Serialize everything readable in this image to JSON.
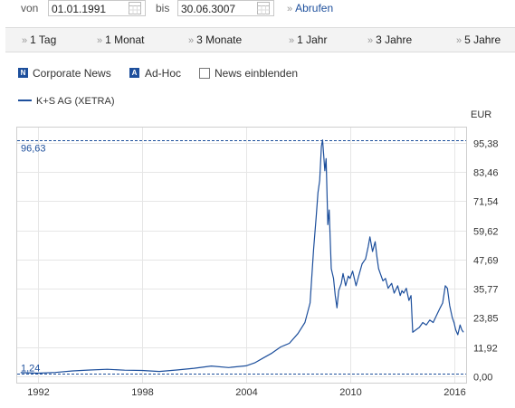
{
  "filter": {
    "from_label": "von",
    "from_value": "01.01.1991",
    "to_label": "bis",
    "to_value": "30.06.3007",
    "submit_label": "Abrufen"
  },
  "periods": [
    "1 Tag",
    "1 Monat",
    "3 Monate",
    "1 Jahr",
    "3 Jahre",
    "5 Jahre"
  ],
  "legend": {
    "corporate_news_icon": "N",
    "corporate_news": "Corporate News",
    "adhoc_icon": "A",
    "adhoc": "Ad-Hoc",
    "news_toggle": "News einblenden"
  },
  "chart_data": {
    "type": "line",
    "series": [
      {
        "name": "K+S AG (XETRA)",
        "color": "#1d4f9c",
        "points": [
          [
            1991.0,
            1.5
          ],
          [
            1992.0,
            1.3
          ],
          [
            1993.0,
            1.6
          ],
          [
            1994.0,
            2.2
          ],
          [
            1995.0,
            2.6
          ],
          [
            1996.0,
            2.9
          ],
          [
            1997.0,
            2.5
          ],
          [
            1998.0,
            2.4
          ],
          [
            1999.0,
            2.0
          ],
          [
            2000.0,
            2.6
          ],
          [
            2001.0,
            3.3
          ],
          [
            2002.0,
            4.2
          ],
          [
            2003.0,
            3.6
          ],
          [
            2004.0,
            4.3
          ],
          [
            2004.5,
            5.5
          ],
          [
            2005.0,
            7.5
          ],
          [
            2005.5,
            9.5
          ],
          [
            2006.0,
            12.0
          ],
          [
            2006.5,
            13.5
          ],
          [
            2007.0,
            17.5
          ],
          [
            2007.4,
            22.0
          ],
          [
            2007.7,
            30.0
          ],
          [
            2007.9,
            52.0
          ],
          [
            2008.05,
            65.0
          ],
          [
            2008.15,
            75.0
          ],
          [
            2008.25,
            80.0
          ],
          [
            2008.35,
            94.0
          ],
          [
            2008.42,
            96.6
          ],
          [
            2008.55,
            84.0
          ],
          [
            2008.62,
            89.0
          ],
          [
            2008.72,
            62.0
          ],
          [
            2008.8,
            68.0
          ],
          [
            2008.92,
            44.0
          ],
          [
            2009.05,
            40.0
          ],
          [
            2009.15,
            33.0
          ],
          [
            2009.25,
            28.0
          ],
          [
            2009.35,
            35.0
          ],
          [
            2009.5,
            38.0
          ],
          [
            2009.6,
            42.0
          ],
          [
            2009.75,
            37.0
          ],
          [
            2009.9,
            41.0
          ],
          [
            2010.0,
            40.0
          ],
          [
            2010.15,
            43.0
          ],
          [
            2010.35,
            37.0
          ],
          [
            2010.5,
            41.0
          ],
          [
            2010.7,
            46.0
          ],
          [
            2010.9,
            48.0
          ],
          [
            2011.05,
            53.0
          ],
          [
            2011.15,
            57.0
          ],
          [
            2011.3,
            51.0
          ],
          [
            2011.45,
            55.0
          ],
          [
            2011.55,
            49.0
          ],
          [
            2011.65,
            44.0
          ],
          [
            2011.75,
            42.0
          ],
          [
            2011.9,
            39.0
          ],
          [
            2012.05,
            40.0
          ],
          [
            2012.2,
            36.0
          ],
          [
            2012.4,
            38.0
          ],
          [
            2012.55,
            34.0
          ],
          [
            2012.75,
            37.0
          ],
          [
            2012.9,
            33.0
          ],
          [
            2013.0,
            35.0
          ],
          [
            2013.1,
            34.0
          ],
          [
            2013.25,
            36.0
          ],
          [
            2013.4,
            31.0
          ],
          [
            2013.52,
            33.0
          ],
          [
            2013.62,
            18.0
          ],
          [
            2013.8,
            19.0
          ],
          [
            2014.0,
            20.0
          ],
          [
            2014.2,
            22.0
          ],
          [
            2014.4,
            21.0
          ],
          [
            2014.6,
            23.0
          ],
          [
            2014.8,
            22.0
          ],
          [
            2015.0,
            25.0
          ],
          [
            2015.2,
            28.0
          ],
          [
            2015.35,
            30.0
          ],
          [
            2015.5,
            37.0
          ],
          [
            2015.62,
            36.0
          ],
          [
            2015.75,
            29.0
          ],
          [
            2015.9,
            24.0
          ],
          [
            2016.0,
            22.0
          ],
          [
            2016.1,
            19.0
          ],
          [
            2016.22,
            17.0
          ],
          [
            2016.35,
            21.0
          ],
          [
            2016.45,
            19.0
          ],
          [
            2016.55,
            18.0
          ]
        ]
      }
    ],
    "x_ticks": [
      1992,
      1998,
      2004,
      2010,
      2016
    ],
    "x_tick_labels": [
      "1992",
      "1998",
      "2004",
      "2010",
      "2016"
    ],
    "xlim": [
      1990.8,
      2016.7
    ],
    "y_ticks": [
      0,
      11.92,
      23.85,
      35.77,
      47.69,
      59.62,
      71.54,
      83.46,
      95.38
    ],
    "y_tick_labels": [
      "0,00",
      "11,92",
      "23,85",
      "35,77",
      "47,69",
      "59,62",
      "71,54",
      "83,46",
      "95,38"
    ],
    "ylim": [
      0,
      95.38
    ],
    "y_unit": "EUR",
    "y_axis_position": "right",
    "max_marker": {
      "value": 96.63,
      "label": "96,63"
    },
    "min_marker": {
      "value": 1.24,
      "label": "1,24"
    },
    "grid": true,
    "legend_position": "top-left"
  }
}
